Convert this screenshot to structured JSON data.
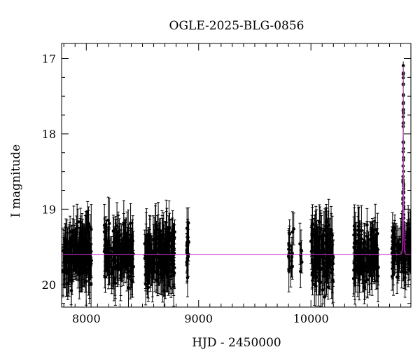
{
  "chart_data": {
    "type": "scatter",
    "title": "OGLE-2025-BLG-0856",
    "xlabel": "HJD - 2450000",
    "ylabel": "I magnitude",
    "xlim": [
      7780,
      10890
    ],
    "ylim": [
      20.3,
      16.8
    ],
    "y_inverted": true,
    "x_ticks": [
      8000,
      9000,
      10000
    ],
    "y_ticks": [
      17,
      18,
      19,
      20
    ],
    "x_minor_step": 100,
    "y_minor_step": 0.25,
    "grid": false,
    "colors": {
      "data": "#000000",
      "model": "#cc33cc"
    },
    "model": {
      "baseline_mag": 19.6,
      "peak_mag": 17.1,
      "t0": 10822,
      "tE": 5
    },
    "series": [
      {
        "style": "points-with-errorbars",
        "observing_seasons": [
          {
            "x_range": [
              7790,
              8050
            ],
            "mag_mean": 19.6,
            "mag_spread": 0.35,
            "err": 0.25,
            "count": 170
          },
          {
            "x_range": [
              8160,
              8420
            ],
            "mag_mean": 19.6,
            "mag_spread": 0.33,
            "err": 0.24,
            "count": 170
          },
          {
            "x_range": [
              8520,
              8790
            ],
            "mag_mean": 19.6,
            "mag_spread": 0.36,
            "err": 0.26,
            "count": 180
          },
          {
            "x_range": [
              8890,
              8920
            ],
            "mag_mean": 19.55,
            "mag_spread": 0.3,
            "err": 0.2,
            "count": 18
          },
          {
            "x_range": [
              9800,
              9850
            ],
            "mag_mean": 19.55,
            "mag_spread": 0.3,
            "err": 0.2,
            "count": 16
          },
          {
            "x_range": [
              9900,
              9920
            ],
            "mag_mean": 19.6,
            "mag_spread": 0.3,
            "err": 0.2,
            "count": 6
          },
          {
            "x_range": [
              10000,
              10200
            ],
            "mag_mean": 19.6,
            "mag_spread": 0.35,
            "err": 0.25,
            "count": 130
          },
          {
            "x_range": [
              10380,
              10600
            ],
            "mag_mean": 19.6,
            "mag_spread": 0.35,
            "err": 0.25,
            "count": 130
          },
          {
            "x_range": [
              10720,
              10890
            ],
            "mag_mean": 19.6,
            "mag_spread": 0.3,
            "err": 0.2,
            "count": 110
          }
        ]
      }
    ]
  }
}
